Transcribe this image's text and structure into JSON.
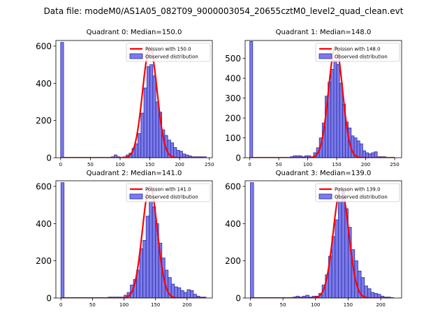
{
  "suptitle": "Data file: modeM0/AS1A05_082T09_9000003054_20655cztM0_level2_quad_clean.evt",
  "colors": {
    "bar_fill": "#7b7bea",
    "bar_edge": "#2c2ca8",
    "curve": "#ff0000",
    "axis": "#000000"
  },
  "chart_data": [
    {
      "type": "bar",
      "title": "Quadrant 0: Median=150.0",
      "xlim": [
        -8,
        255
      ],
      "ylim": [
        0,
        630
      ],
      "xticks": [
        0,
        50,
        100,
        150,
        200,
        250
      ],
      "yticks": [
        0,
        200,
        400,
        600
      ],
      "legend": {
        "position": "top-right",
        "curve_label": "Poisson with 150.0",
        "bars_label": "Observed distribution"
      },
      "bin_width": 5,
      "bins": [
        [
          0,
          620
        ],
        [
          85,
          5
        ],
        [
          90,
          15
        ],
        [
          95,
          5
        ],
        [
          100,
          0
        ],
        [
          105,
          5
        ],
        [
          110,
          15
        ],
        [
          115,
          25
        ],
        [
          120,
          50
        ],
        [
          125,
          75
        ],
        [
          130,
          130
        ],
        [
          135,
          240
        ],
        [
          140,
          375
        ],
        [
          145,
          490
        ],
        [
          150,
          500
        ],
        [
          155,
          440
        ],
        [
          160,
          300
        ],
        [
          165,
          245
        ],
        [
          170,
          150
        ],
        [
          175,
          120
        ],
        [
          180,
          95
        ],
        [
          185,
          80
        ],
        [
          190,
          55
        ],
        [
          195,
          40
        ],
        [
          200,
          35
        ],
        [
          205,
          20
        ],
        [
          210,
          15
        ],
        [
          215,
          10
        ],
        [
          220,
          5
        ],
        [
          225,
          5
        ],
        [
          230,
          5
        ],
        [
          235,
          5
        ],
        [
          240,
          5
        ]
      ],
      "poisson_mean": 150.0,
      "poisson_peak": 590,
      "curve_x": [
        0,
        241
      ]
    },
    {
      "type": "bar",
      "title": "Quadrant 1: Median=148.0",
      "xlim": [
        -8,
        262
      ],
      "ylim": [
        0,
        590
      ],
      "xticks": [
        0,
        50,
        100,
        150,
        200,
        250
      ],
      "yticks": [
        0,
        100,
        200,
        300,
        400,
        500
      ],
      "legend": {
        "position": "top-right",
        "curve_label": "Poisson with 148.0",
        "bars_label": "Observed distribution"
      },
      "bin_width": 5,
      "bins": [
        [
          0,
          585
        ],
        [
          70,
          5
        ],
        [
          75,
          10
        ],
        [
          80,
          10
        ],
        [
          85,
          10
        ],
        [
          90,
          5
        ],
        [
          95,
          10
        ],
        [
          100,
          10
        ],
        [
          105,
          5
        ],
        [
          110,
          25
        ],
        [
          115,
          50
        ],
        [
          120,
          100
        ],
        [
          125,
          175
        ],
        [
          130,
          310
        ],
        [
          135,
          380
        ],
        [
          140,
          445
        ],
        [
          145,
          490
        ],
        [
          150,
          470
        ],
        [
          155,
          375
        ],
        [
          160,
          270
        ],
        [
          165,
          180
        ],
        [
          170,
          150
        ],
        [
          175,
          110
        ],
        [
          180,
          100
        ],
        [
          185,
          85
        ],
        [
          190,
          70
        ],
        [
          195,
          35
        ],
        [
          200,
          25
        ],
        [
          205,
          20
        ],
        [
          210,
          25
        ],
        [
          215,
          30
        ],
        [
          220,
          5
        ],
        [
          225,
          5
        ],
        [
          230,
          5
        ]
      ],
      "poisson_mean": 148.0,
      "poisson_peak": 560,
      "curve_x": [
        0,
        250
      ]
    },
    {
      "type": "bar",
      "title": "Quadrant 2: Median=141.0",
      "xlim": [
        -8,
        240
      ],
      "ylim": [
        0,
        630
      ],
      "xticks": [
        0,
        50,
        100,
        150,
        200
      ],
      "yticks": [
        0,
        200,
        400,
        600
      ],
      "legend": {
        "position": "top-right",
        "curve_label": "Poisson with 141.0",
        "bars_label": "Observed distribution"
      },
      "bin_width": 5,
      "bins": [
        [
          0,
          620
        ],
        [
          75,
          5
        ],
        [
          80,
          5
        ],
        [
          85,
          5
        ],
        [
          90,
          5
        ],
        [
          95,
          5
        ],
        [
          100,
          15
        ],
        [
          105,
          30
        ],
        [
          110,
          70
        ],
        [
          115,
          100
        ],
        [
          120,
          150
        ],
        [
          125,
          265
        ],
        [
          130,
          310
        ],
        [
          135,
          440
        ],
        [
          140,
          520
        ],
        [
          145,
          490
        ],
        [
          150,
          400
        ],
        [
          155,
          295
        ],
        [
          160,
          215
        ],
        [
          165,
          150
        ],
        [
          170,
          110
        ],
        [
          175,
          75
        ],
        [
          180,
          60
        ],
        [
          185,
          55
        ],
        [
          190,
          40
        ],
        [
          195,
          30
        ],
        [
          200,
          45
        ],
        [
          205,
          40
        ],
        [
          210,
          20
        ],
        [
          215,
          10
        ],
        [
          220,
          5
        ],
        [
          225,
          5
        ]
      ],
      "poisson_mean": 141.0,
      "poisson_peak": 600,
      "curve_x": [
        0,
        230
      ]
    },
    {
      "type": "bar",
      "title": "Quadrant 3: Median=139.0",
      "xlim": [
        -8,
        232
      ],
      "ylim": [
        0,
        630
      ],
      "xticks": [
        0,
        50,
        100,
        150,
        200
      ],
      "yticks": [
        0,
        200,
        400,
        600
      ],
      "legend": {
        "position": "top-right",
        "curve_label": "Poisson with 139.0",
        "bars_label": "Observed distribution"
      },
      "bin_width": 5,
      "bins": [
        [
          0,
          620
        ],
        [
          65,
          5
        ],
        [
          70,
          10
        ],
        [
          75,
          5
        ],
        [
          80,
          10
        ],
        [
          85,
          15
        ],
        [
          90,
          5
        ],
        [
          95,
          10
        ],
        [
          100,
          10
        ],
        [
          105,
          25
        ],
        [
          110,
          70
        ],
        [
          115,
          125
        ],
        [
          120,
          225
        ],
        [
          125,
          330
        ],
        [
          130,
          420
        ],
        [
          135,
          520
        ],
        [
          140,
          570
        ],
        [
          145,
          480
        ],
        [
          150,
          380
        ],
        [
          155,
          260
        ],
        [
          160,
          200
        ],
        [
          165,
          145
        ],
        [
          170,
          110
        ],
        [
          175,
          65
        ],
        [
          180,
          50
        ],
        [
          185,
          30
        ],
        [
          190,
          25
        ],
        [
          195,
          20
        ],
        [
          200,
          10
        ],
        [
          205,
          5
        ],
        [
          210,
          5
        ]
      ],
      "poisson_mean": 139.0,
      "poisson_peak": 590,
      "curve_x": [
        0,
        220
      ]
    }
  ]
}
